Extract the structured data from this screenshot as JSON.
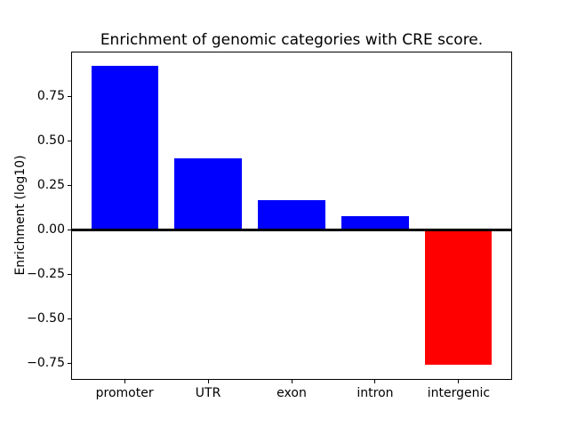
{
  "figure": {
    "background_color": "#ffffff"
  },
  "chart_data": {
    "type": "bar",
    "title": "Enrichment of genomic categories with CRE score.",
    "xlabel": "",
    "ylabel": "Enrichment (log10)",
    "categories": [
      "promoter",
      "UTR",
      "exon",
      "intron",
      "intergenic"
    ],
    "values": [
      0.92,
      0.4,
      0.165,
      0.075,
      -0.76
    ],
    "bar_colors": [
      "#0000ff",
      "#0000ff",
      "#0000ff",
      "#0000ff",
      "#ff0000"
    ],
    "positive_color": "#0000ff",
    "negative_color": "#ff0000",
    "bar_width": 0.8,
    "xlim": [
      -0.64,
      4.64
    ],
    "ylim": [
      -0.844,
      1.004
    ],
    "yticks": [
      {
        "value": 0.75,
        "label": "0.75"
      },
      {
        "value": 0.5,
        "label": "0.50"
      },
      {
        "value": 0.25,
        "label": "0.25"
      },
      {
        "value": 0.0,
        "label": "0.00"
      },
      {
        "value": -0.25,
        "label": "−0.25"
      },
      {
        "value": -0.5,
        "label": "−0.50"
      },
      {
        "value": -0.75,
        "label": "−0.75"
      }
    ],
    "zero_line": true,
    "grid": false,
    "legend": null,
    "axis_color": "#000000"
  }
}
